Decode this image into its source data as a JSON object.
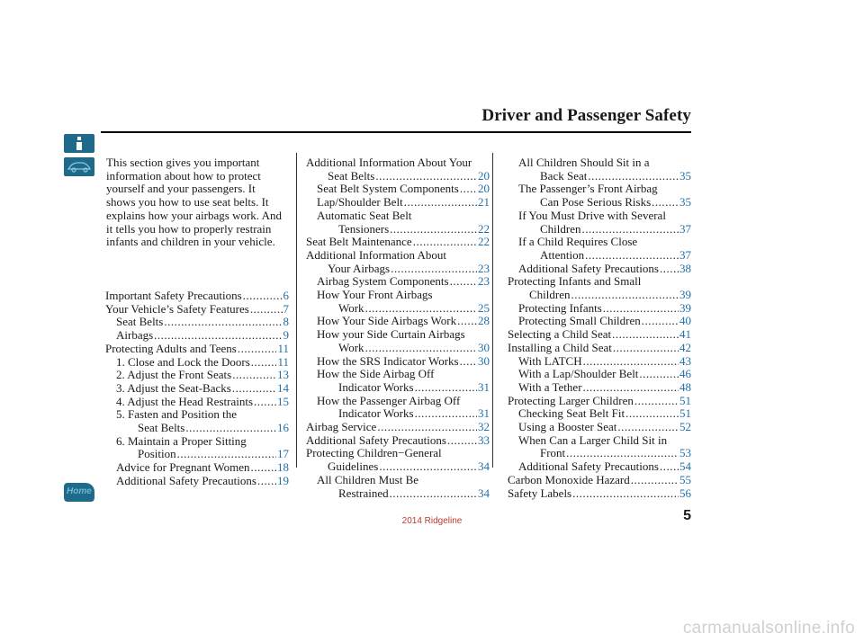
{
  "header": {
    "section_title": "Driver and Passenger Safety",
    "page_number": "5"
  },
  "sidebar": {
    "icons": [
      "info-icon",
      "car-icon",
      "home-icon"
    ],
    "home_label": "Home",
    "accent_color": "#1e6a8a"
  },
  "intro": "This section gives you important information about how to protect yourself and your passengers. It shows you how to use seat belts. It explains how your airbags work. And it tells you how to properly restrain infants and children in your vehicle.",
  "toc_columns": [
    [
      {
        "level": 0,
        "text": "Important Safety Precautions",
        "page": "6"
      },
      {
        "level": 0,
        "text": "Your Vehicle’s Safety Features",
        "page": "7"
      },
      {
        "level": 1,
        "text": "Seat Belts",
        "page": "8"
      },
      {
        "level": 1,
        "text": "Airbags",
        "page": "9"
      },
      {
        "level": 0,
        "text": "Protecting Adults and Teens",
        "page": "11"
      },
      {
        "level": 1,
        "text": "1. Close and Lock the Doors",
        "page": "11"
      },
      {
        "level": 1,
        "text": "2. Adjust the Front Seats",
        "page": "13"
      },
      {
        "level": 1,
        "text": "3. Adjust the Seat-Backs",
        "page": "14"
      },
      {
        "level": 1,
        "text": "4. Adjust the Head Restraints",
        "page": "15"
      },
      {
        "level": 1,
        "pre": "5. Fasten and Position the",
        "text": "Seat Belts",
        "page": "16"
      },
      {
        "level": 1,
        "pre": "6. Maintain a Proper Sitting",
        "text": "Position",
        "page": "17"
      },
      {
        "level": 1,
        "text": "Advice for Pregnant Women",
        "page": "18"
      },
      {
        "level": 1,
        "text": "Additional Safety Precautions",
        "page": "19"
      }
    ],
    [
      {
        "level": 0,
        "pre": "Additional Information About Your",
        "text": "Seat Belts",
        "page": "20"
      },
      {
        "level": 1,
        "text": "Seat Belt System Components",
        "page": "20"
      },
      {
        "level": 1,
        "text": "Lap/Shoulder Belt",
        "page": "21"
      },
      {
        "level": 1,
        "pre": "Automatic Seat Belt",
        "text": "Tensioners",
        "page": "22"
      },
      {
        "level": 0,
        "text": "Seat Belt Maintenance",
        "page": "22"
      },
      {
        "level": 0,
        "pre": "Additional Information About",
        "text": "Your Airbags",
        "page": "23"
      },
      {
        "level": 1,
        "text": "Airbag System Components",
        "page": "23"
      },
      {
        "level": 1,
        "pre": "How Your Front Airbags",
        "text": "Work",
        "page": "25"
      },
      {
        "level": 1,
        "text": "How Your Side Airbags Work",
        "page": "28"
      },
      {
        "level": 1,
        "pre": "How your Side Curtain Airbags",
        "text": "Work",
        "page": "30"
      },
      {
        "level": 1,
        "text": "How the SRS Indicator Works",
        "page": "30"
      },
      {
        "level": 1,
        "pre": "How the Side Airbag Off",
        "text": "Indicator Works",
        "page": "31"
      },
      {
        "level": 1,
        "pre": "How the Passenger Airbag Off",
        "text": "Indicator Works",
        "page": "31"
      },
      {
        "level": 0,
        "text": "Airbag Service",
        "page": "32"
      },
      {
        "level": 0,
        "text": "Additional Safety Precautions",
        "page": "33"
      },
      {
        "level": 0,
        "pre": "Protecting Children−General",
        "text": "Guidelines",
        "page": "34"
      },
      {
        "level": 1,
        "pre": "All Children Must Be",
        "text": "Restrained",
        "page": "34"
      }
    ],
    [
      {
        "level": 1,
        "pre": "All Children Should Sit in a",
        "text": "Back Seat",
        "page": "35"
      },
      {
        "level": 1,
        "pre": "The Passenger’s Front Airbag",
        "text": "Can Pose Serious Risks",
        "page": "35"
      },
      {
        "level": 1,
        "pre": "If You Must Drive with Several",
        "text": "Children",
        "page": "37"
      },
      {
        "level": 1,
        "pre": "If a Child Requires Close",
        "text": "Attention",
        "page": "37"
      },
      {
        "level": 1,
        "text": "Additional Safety Precautions",
        "page": "38"
      },
      {
        "level": 0,
        "pre": "Protecting Infants and Small",
        "text": "Children",
        "page": "39"
      },
      {
        "level": 1,
        "text": "Protecting Infants",
        "page": "39"
      },
      {
        "level": 1,
        "text": "Protecting Small Children",
        "page": "40"
      },
      {
        "level": 0,
        "text": "Selecting a Child Seat",
        "page": "41"
      },
      {
        "level": 0,
        "text": "Installing a Child Seat",
        "page": "42"
      },
      {
        "level": 1,
        "text": "With LATCH",
        "page": "43"
      },
      {
        "level": 1,
        "text": "With a Lap/Shoulder Belt",
        "page": "46"
      },
      {
        "level": 1,
        "text": "With a Tether",
        "page": "48"
      },
      {
        "level": 0,
        "text": "Protecting Larger Children",
        "page": "51"
      },
      {
        "level": 1,
        "text": "Checking Seat Belt Fit",
        "page": "51"
      },
      {
        "level": 1,
        "text": "Using a Booster Seat",
        "page": "52"
      },
      {
        "level": 1,
        "pre": "When Can a Larger Child Sit in",
        "text": "Front",
        "page": "53"
      },
      {
        "level": 1,
        "text": "Additional Safety Precautions",
        "page": "54"
      },
      {
        "level": 0,
        "text": "Carbon Monoxide Hazard",
        "page": "55"
      },
      {
        "level": 0,
        "text": "Safety Labels",
        "page": "56"
      }
    ]
  ],
  "footer": {
    "model": "2014 Ridgeline",
    "watermark": "carmanualsonline.info"
  },
  "colors": {
    "link": "#1f6fa8",
    "model_text": "#c0392b",
    "watermark": "#d0d0d0"
  }
}
